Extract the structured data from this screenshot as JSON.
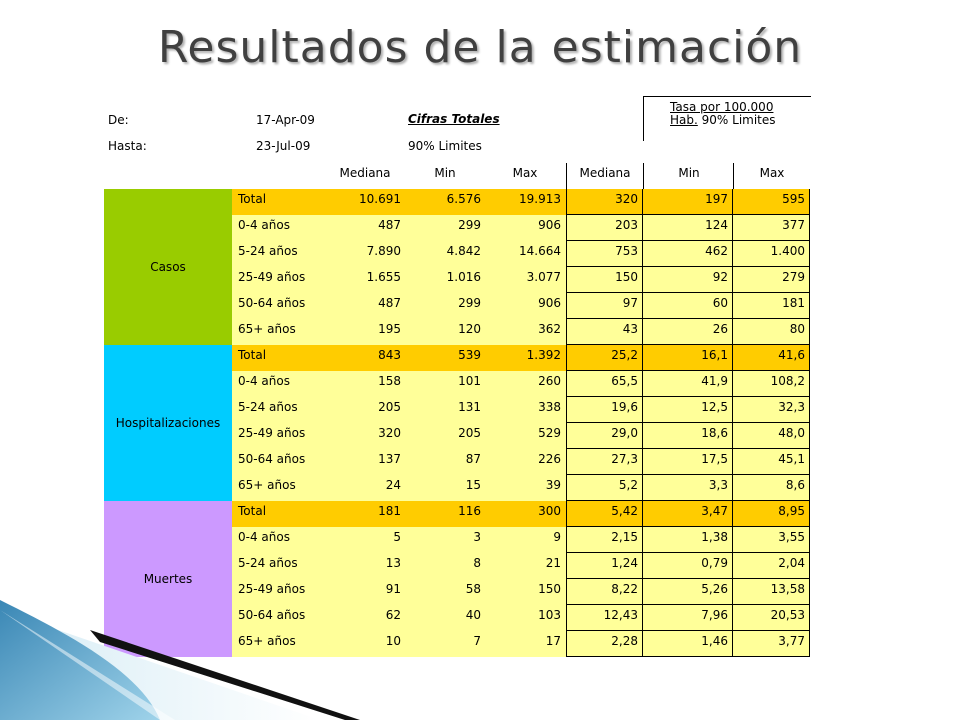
{
  "title": "Resultados de la estimación",
  "meta": {
    "de_label": "De:",
    "de_value": "17-Apr-09",
    "hasta_label": "Hasta:",
    "hasta_value": "23-Jul-09",
    "cifras_totales": "Cifras Totales",
    "limites_left": "90% Limites",
    "tasa_line1": "Tasa por 100.000",
    "tasa_hab": "Hab.",
    "tasa_limites": "90% Limites"
  },
  "headers": [
    "Mediana",
    "Min",
    "Max",
    "Mediana",
    "Min",
    "Max"
  ],
  "colors": {
    "casos": "#99cc00",
    "hospitalizaciones": "#00ccff",
    "muertes": "#cc99ff",
    "total_row": "#ffcc00",
    "data_row": "#ffff99"
  },
  "groups": [
    {
      "name": "Casos",
      "color_key": "casos",
      "rows": [
        {
          "label": "Total",
          "total": true,
          "values": [
            "10.691",
            "6.576",
            "19.913",
            "320",
            "197",
            "595"
          ]
        },
        {
          "label": "0-4 años",
          "values": [
            "487",
            "299",
            "906",
            "203",
            "124",
            "377"
          ]
        },
        {
          "label": "5-24 años",
          "values": [
            "7.890",
            "4.842",
            "14.664",
            "753",
            "462",
            "1.400"
          ]
        },
        {
          "label": "25-49 años",
          "values": [
            "1.655",
            "1.016",
            "3.077",
            "150",
            "92",
            "279"
          ]
        },
        {
          "label": "50-64 años",
          "values": [
            "487",
            "299",
            "906",
            "97",
            "60",
            "181"
          ]
        },
        {
          "label": "65+ años",
          "values": [
            "195",
            "120",
            "362",
            "43",
            "26",
            "80"
          ]
        }
      ]
    },
    {
      "name": "Hospitalizaciones",
      "color_key": "hospitalizaciones",
      "rows": [
        {
          "label": "Total",
          "total": true,
          "values": [
            "843",
            "539",
            "1.392",
            "25,2",
            "16,1",
            "41,6"
          ]
        },
        {
          "label": "0-4 años",
          "values": [
            "158",
            "101",
            "260",
            "65,5",
            "41,9",
            "108,2"
          ]
        },
        {
          "label": "5-24 años",
          "values": [
            "205",
            "131",
            "338",
            "19,6",
            "12,5",
            "32,3"
          ]
        },
        {
          "label": "25-49 años",
          "values": [
            "320",
            "205",
            "529",
            "29,0",
            "18,6",
            "48,0"
          ]
        },
        {
          "label": "50-64 años",
          "values": [
            "137",
            "87",
            "226",
            "27,3",
            "17,5",
            "45,1"
          ]
        },
        {
          "label": "65+ años",
          "values": [
            "24",
            "15",
            "39",
            "5,2",
            "3,3",
            "8,6"
          ]
        }
      ]
    },
    {
      "name": "Muertes",
      "color_key": "muertes",
      "rows": [
        {
          "label": "Total",
          "total": true,
          "values": [
            "181",
            "116",
            "300",
            "5,42",
            "3,47",
            "8,95"
          ]
        },
        {
          "label": "0-4 años",
          "values": [
            "5",
            "3",
            "9",
            "2,15",
            "1,38",
            "3,55"
          ]
        },
        {
          "label": "5-24 años",
          "values": [
            "13",
            "8",
            "21",
            "1,24",
            "0,79",
            "2,04"
          ]
        },
        {
          "label": "25-49 años",
          "values": [
            "91",
            "58",
            "150",
            "8,22",
            "5,26",
            "13,58"
          ]
        },
        {
          "label": "50-64 años",
          "values": [
            "62",
            "40",
            "103",
            "12,43",
            "7,96",
            "20,53"
          ]
        },
        {
          "label": "65+ años",
          "values": [
            "10",
            "7",
            "17",
            "2,28",
            "1,46",
            "3,77"
          ]
        }
      ]
    }
  ]
}
